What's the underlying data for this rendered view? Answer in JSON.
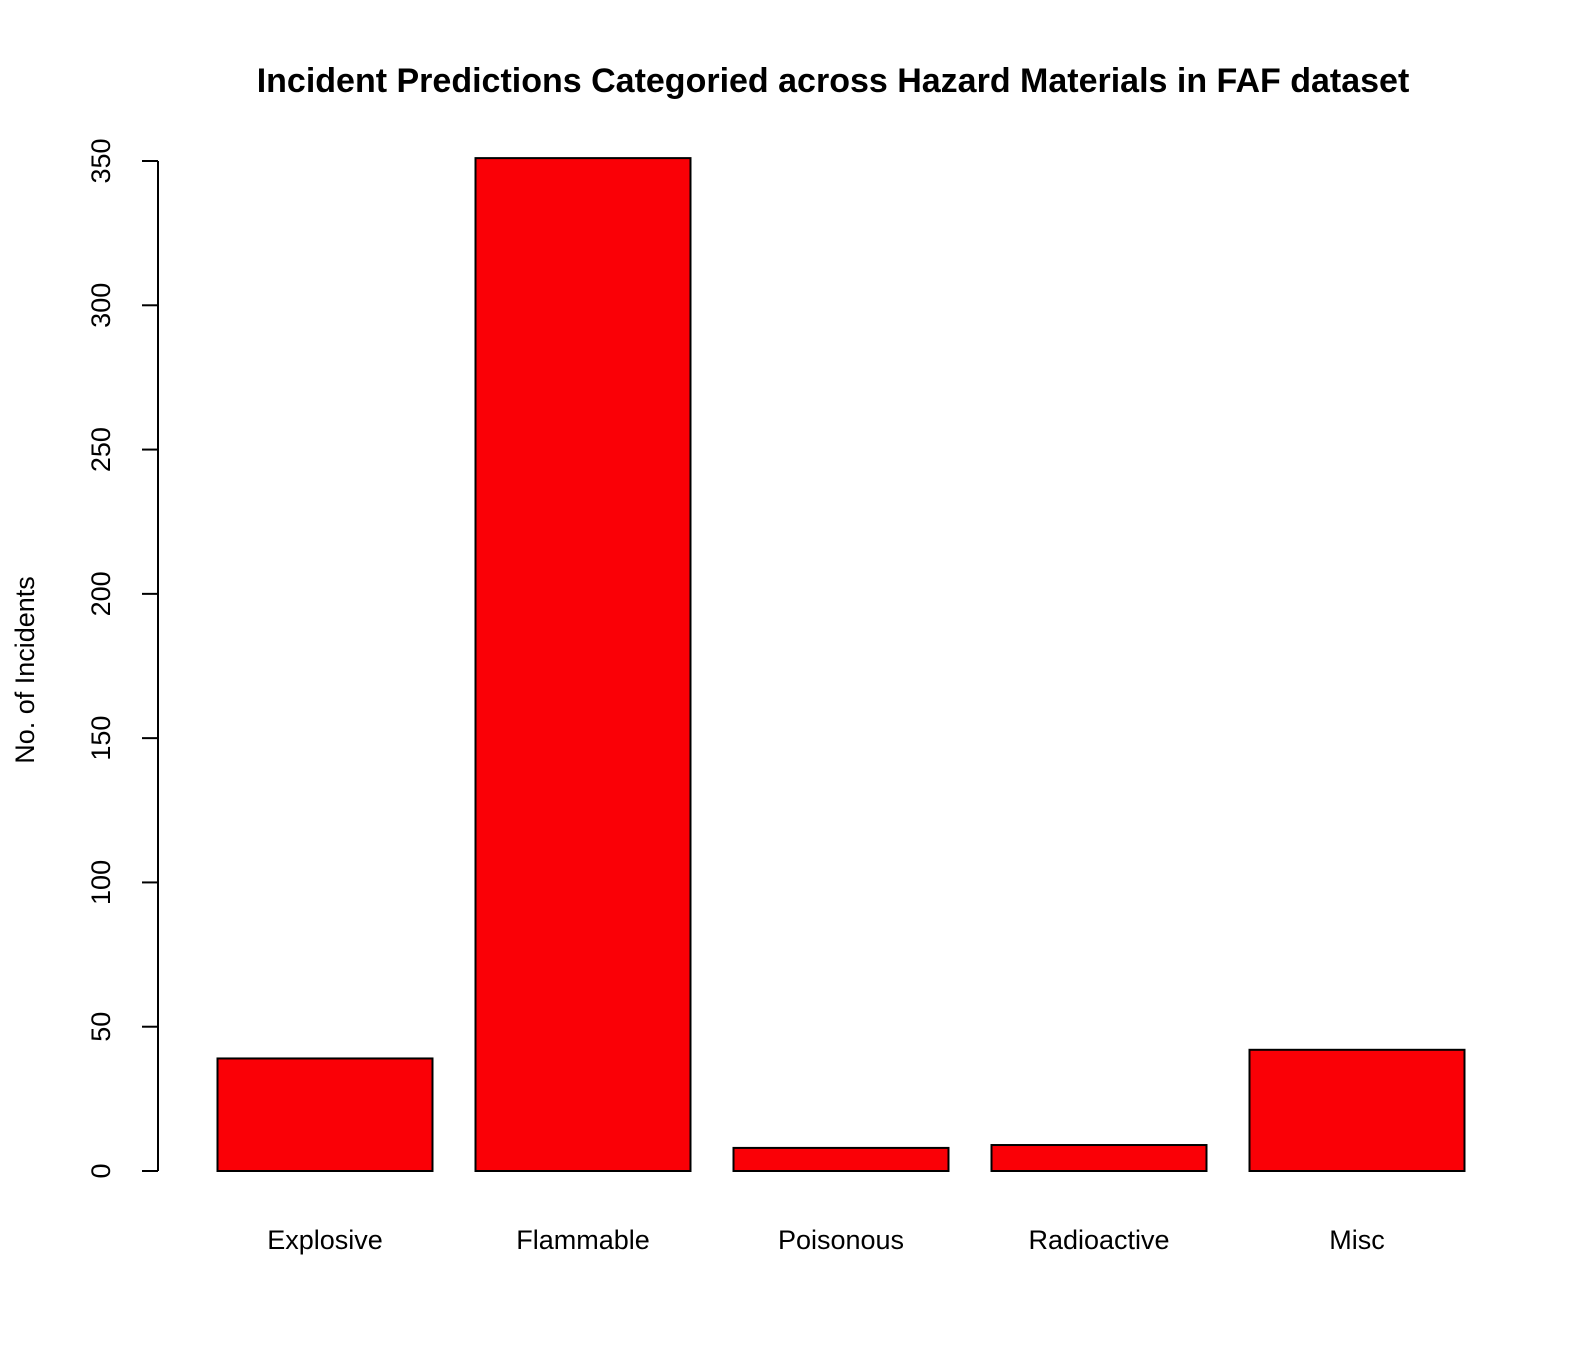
{
  "chart_data": {
    "type": "bar",
    "title": "Incident Predictions Categoried across Hazard Materials in FAF dataset",
    "xlabel": "",
    "ylabel": "No. of Incidents",
    "categories": [
      "Explosive",
      "Flammable",
      "Poisonous",
      "Radioactive",
      "Misc"
    ],
    "values": [
      39,
      351,
      8,
      9,
      42
    ],
    "ylim": [
      0,
      350
    ],
    "yticks": [
      0,
      50,
      100,
      150,
      200,
      250,
      300,
      350
    ],
    "bar_color": "#FA0006",
    "grid": false,
    "legend": "none"
  }
}
